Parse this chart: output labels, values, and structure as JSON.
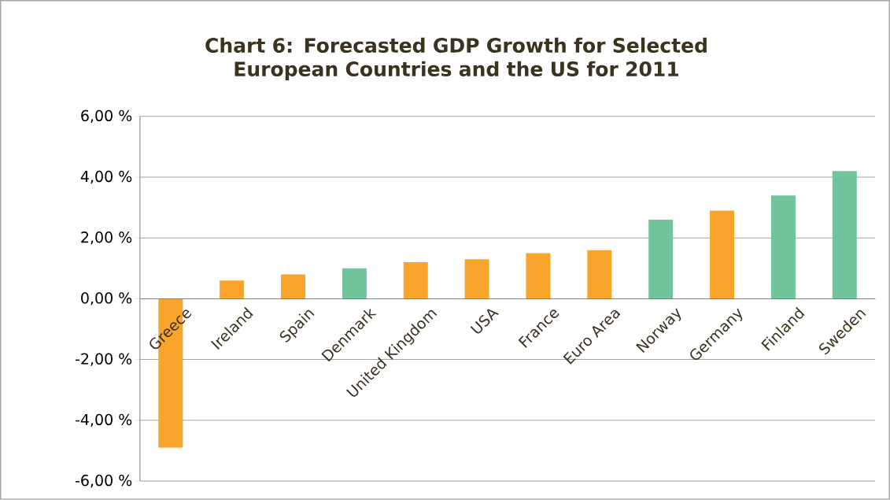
{
  "chart_data": {
    "type": "bar",
    "title": "Chart 6: Forecasted GDP Growth for Selected European Countries and the US for 2011",
    "categories": [
      "Greece",
      "Ireland",
      "Spain",
      "Denmark",
      "United Kingdom",
      "USA",
      "France",
      "Euro Area",
      "Norway",
      "Germany",
      "Finland",
      "Sweden"
    ],
    "values": [
      -4.9,
      0.6,
      0.8,
      1.0,
      1.2,
      1.3,
      1.5,
      1.6,
      2.6,
      2.9,
      3.4,
      4.2
    ],
    "colors": [
      "#f9a42a",
      "#f9a42a",
      "#f9a42a",
      "#72c49c",
      "#f9a42a",
      "#f9a42a",
      "#f9a42a",
      "#f9a42a",
      "#72c49c",
      "#f9a42a",
      "#72c49c",
      "#72c49c"
    ],
    "ylim": [
      -6,
      6
    ],
    "yticks": [
      {
        "value": -6,
        "label": "-6,00 %"
      },
      {
        "value": -4,
        "label": "-4,00 %"
      },
      {
        "value": -2,
        "label": "-2,00 %"
      },
      {
        "value": 0,
        "label": "0,00 %"
      },
      {
        "value": 2,
        "label": "2,00 %"
      },
      {
        "value": 4,
        "label": "4,00 %"
      },
      {
        "value": 6,
        "label": "6,00 %"
      }
    ],
    "grid": "y"
  }
}
